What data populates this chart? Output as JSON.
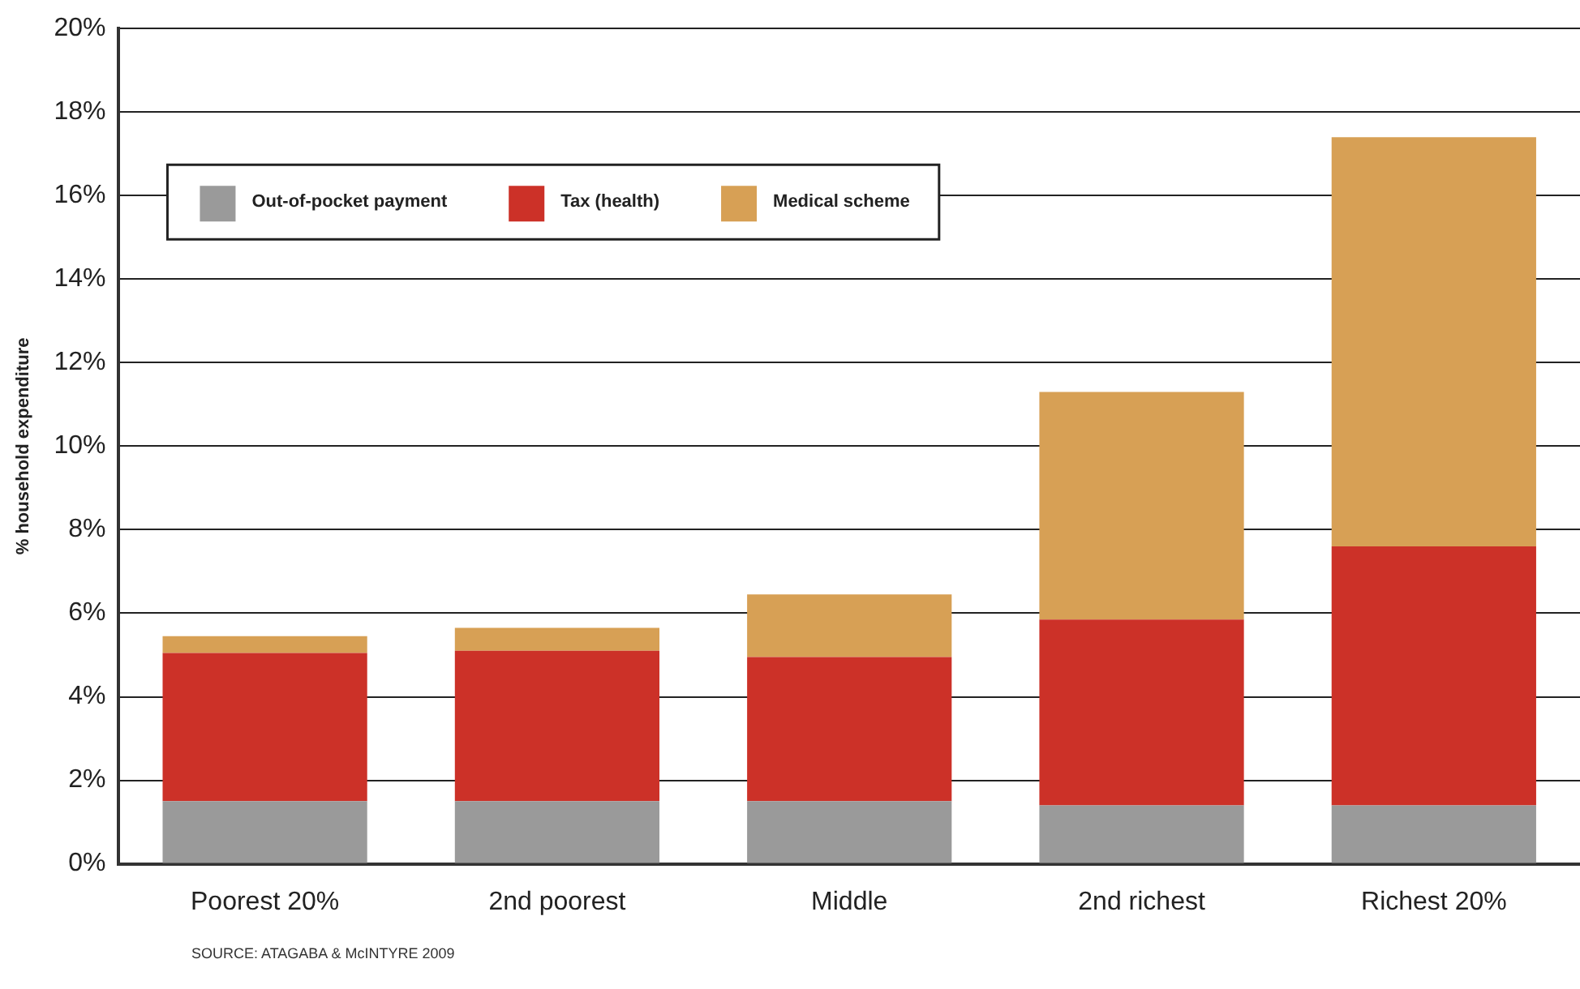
{
  "chart_data": {
    "type": "bar",
    "stacked": true,
    "ylabel": "% household expenditure",
    "categories": [
      "Poorest 20%",
      "2nd poorest",
      "Middle",
      "2nd richest",
      "Richest 20%"
    ],
    "series": [
      {
        "name": "Out-of-pocket payment",
        "color": "#9a9a9a",
        "values": [
          1.5,
          1.5,
          1.5,
          1.4,
          1.4
        ]
      },
      {
        "name": "Tax (health)",
        "color": "#cc3128",
        "values": [
          3.55,
          3.6,
          3.45,
          4.45,
          6.2
        ]
      },
      {
        "name": "Medical scheme",
        "color": "#d7a055",
        "values": [
          0.4,
          0.55,
          1.5,
          5.45,
          9.8
        ]
      }
    ],
    "ylim": [
      0,
      20
    ],
    "yticks": [
      {
        "value": 0,
        "label": "0%"
      },
      {
        "value": 2,
        "label": "2%"
      },
      {
        "value": 4,
        "label": "4%"
      },
      {
        "value": 6,
        "label": "6%"
      },
      {
        "value": 8,
        "label": "8%"
      },
      {
        "value": 10,
        "label": "10%"
      },
      {
        "value": 12,
        "label": "12%"
      },
      {
        "value": 14,
        "label": "14%"
      },
      {
        "value": 16,
        "label": "16%"
      },
      {
        "value": 18,
        "label": "18%"
      },
      {
        "value": 20,
        "label": "20%"
      }
    ],
    "grid": "y",
    "legend": "top left",
    "annotations": [
      "SOURCE: ATAGABA & McINTYRE 2009"
    ]
  }
}
